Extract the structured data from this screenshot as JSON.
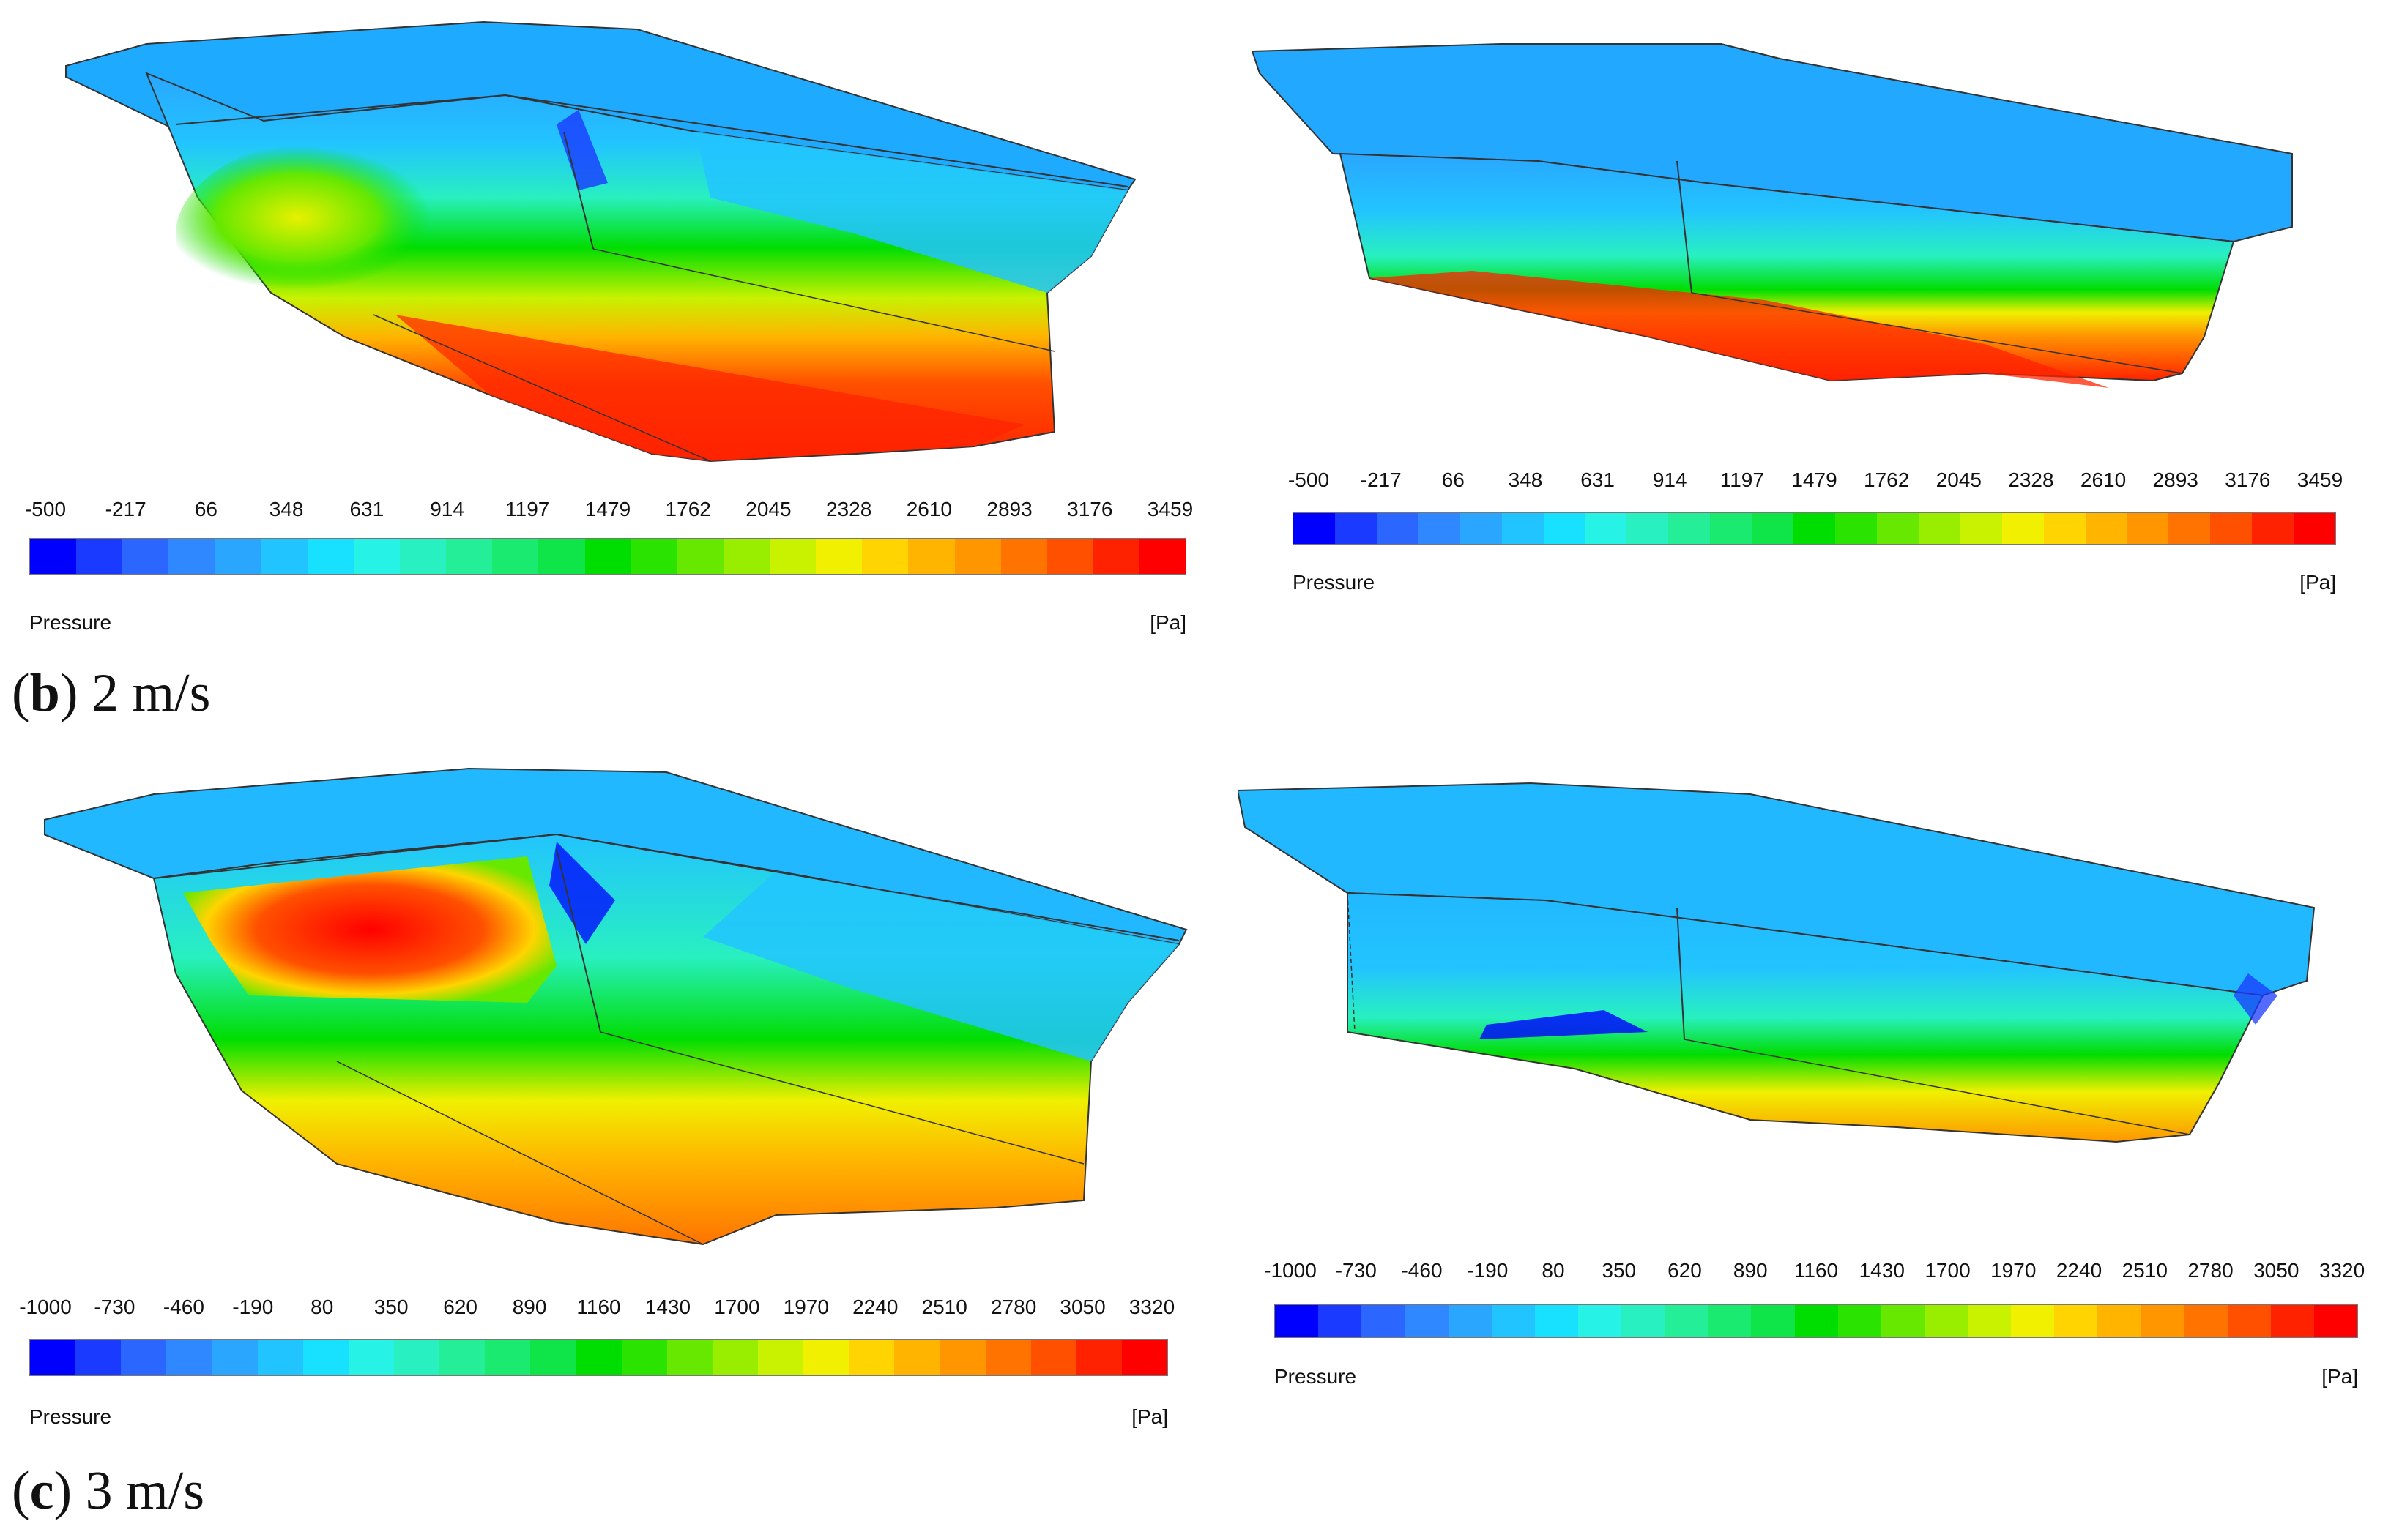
{
  "legend_colors": [
    "#0000ff",
    "#1a3aff",
    "#2a66ff",
    "#2f88ff",
    "#2aa6ff",
    "#22c4ff",
    "#18e0ff",
    "#26f2e6",
    "#28f0c0",
    "#24ee98",
    "#1aea70",
    "#0fe448",
    "#00dd00",
    "#2ae400",
    "#66e800",
    "#99ee00",
    "#c8f200",
    "#f0f000",
    "#ffd400",
    "#ffb400",
    "#ff9600",
    "#ff7400",
    "#ff5000",
    "#ff2200",
    "#ff0000"
  ],
  "panels": [
    {
      "id": "b-left",
      "legend": {
        "ticks": [
          "-500",
          "-217",
          "66",
          "348",
          "631",
          "914",
          "1197",
          "1479",
          "1762",
          "2045",
          "2328",
          "2610",
          "2893",
          "3176",
          "3459"
        ],
        "quantity": "Pressure",
        "unit": "[Pa]"
      }
    },
    {
      "id": "b-right",
      "legend": {
        "ticks": [
          "-500",
          "-217",
          "66",
          "348",
          "631",
          "914",
          "1197",
          "1479",
          "1762",
          "2045",
          "2328",
          "2610",
          "2893",
          "3176",
          "3459"
        ],
        "quantity": "Pressure",
        "unit": "[Pa]"
      }
    },
    {
      "id": "c-left",
      "legend": {
        "ticks": [
          "-1000",
          "-730",
          "-460",
          "-190",
          "80",
          "350",
          "620",
          "890",
          "1160",
          "1430",
          "1700",
          "1970",
          "2240",
          "2510",
          "2780",
          "3050",
          "3320"
        ],
        "quantity": "Pressure",
        "unit": "[Pa]"
      }
    },
    {
      "id": "c-right",
      "legend": {
        "ticks": [
          "-1000",
          "-730",
          "-460",
          "-190",
          "80",
          "350",
          "620",
          "890",
          "1160",
          "1430",
          "1700",
          "1970",
          "2240",
          "2510",
          "2780",
          "3050",
          "3320"
        ],
        "quantity": "Pressure",
        "unit": "[Pa]"
      }
    }
  ],
  "captions": {
    "b": {
      "letter": "b",
      "text": " 2 m/s"
    },
    "c": {
      "letter": "c",
      "text": " 3 m/s"
    }
  }
}
